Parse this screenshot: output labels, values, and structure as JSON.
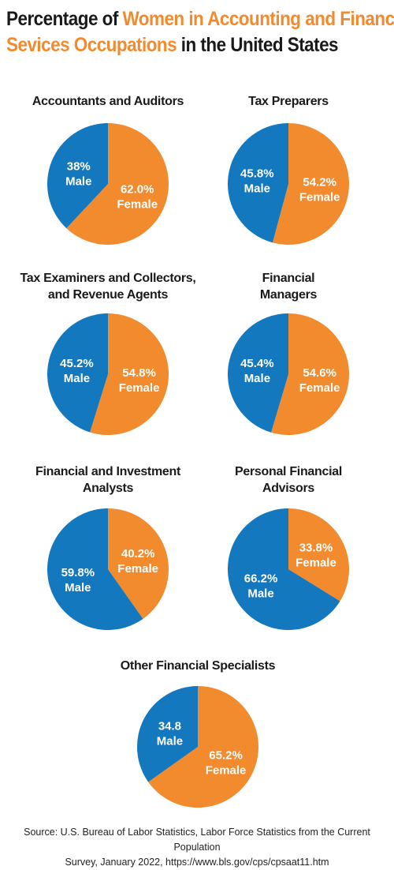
{
  "title": {
    "part1": "Percentage of ",
    "highlight1": "Women in Accounting and Financial",
    "highlight2": "Sevices Occupations",
    "part2": " in the United States"
  },
  "colors": {
    "female": "#F28A2E",
    "male": "#1478BE",
    "title_accent": "#F28A2E"
  },
  "chart_data": [
    {
      "type": "pie",
      "title": "Accountants and Auditors",
      "slices": [
        {
          "name": "Female",
          "value": 62.0,
          "label": "62.0%"
        },
        {
          "name": "Male",
          "value": 38.0,
          "label": "38%"
        }
      ]
    },
    {
      "type": "pie",
      "title": "Tax Preparers",
      "slices": [
        {
          "name": "Female",
          "value": 54.2,
          "label": "54.2%"
        },
        {
          "name": "Male",
          "value": 45.8,
          "label": "45.8%"
        }
      ]
    },
    {
      "type": "pie",
      "title": "Tax Examiners and Collectors,\nand Revenue Agents",
      "slices": [
        {
          "name": "Female",
          "value": 54.8,
          "label": "54.8%"
        },
        {
          "name": "Male",
          "value": 45.2,
          "label": "45.2%"
        }
      ]
    },
    {
      "type": "pie",
      "title": "Financial\nManagers",
      "slices": [
        {
          "name": "Female",
          "value": 54.6,
          "label": "54.6%"
        },
        {
          "name": "Male",
          "value": 45.4,
          "label": "45.4%"
        }
      ]
    },
    {
      "type": "pie",
      "title": "Financial and Investment\nAnalysts",
      "slices": [
        {
          "name": "Female",
          "value": 40.2,
          "label": "40.2%"
        },
        {
          "name": "Male",
          "value": 59.8,
          "label": "59.8%"
        }
      ]
    },
    {
      "type": "pie",
      "title": "Personal Financial\nAdvisors",
      "slices": [
        {
          "name": "Female",
          "value": 33.8,
          "label": "33.8%"
        },
        {
          "name": "Male",
          "value": 66.2,
          "label": "66.2%"
        }
      ]
    },
    {
      "type": "pie",
      "title": "Other Financial Specialists",
      "slices": [
        {
          "name": "Female",
          "value": 65.2,
          "label": "65.2%"
        },
        {
          "name": "Male",
          "value": 34.8,
          "label": "34.8"
        }
      ]
    }
  ],
  "source": {
    "line1": "Source: U.S. Bureau of Labor Statistics, Labor Force Statistics from the Current Population",
    "line2": "Survey, January 2022, https://www.bls.gov/cps/cpsaat11.htm"
  }
}
